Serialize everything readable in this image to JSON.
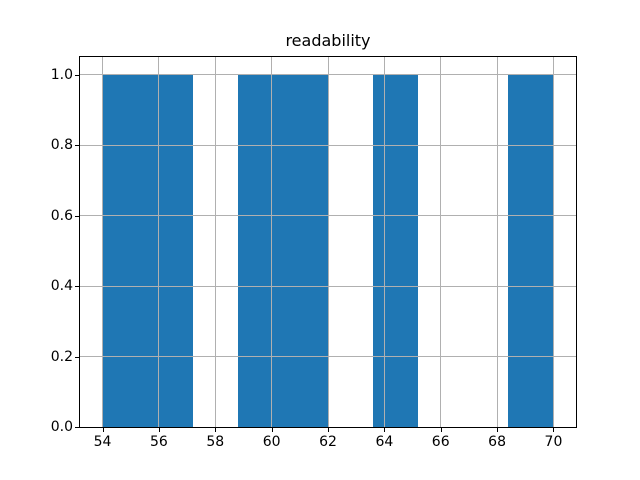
{
  "chart_data": {
    "type": "bar",
    "subtype": "histogram",
    "title": "readability",
    "xlabel": "",
    "ylabel": "",
    "bin_edges": [
      54,
      55.6,
      57.2,
      58.8,
      60.4,
      62,
      63.6,
      65.2,
      66.8,
      68.4,
      70
    ],
    "counts": [
      1,
      1,
      0,
      1,
      1,
      0,
      1,
      0,
      0,
      1
    ],
    "xticks": [
      54,
      56,
      58,
      60,
      62,
      64,
      66,
      68,
      70
    ],
    "yticks": [
      0.0,
      0.2,
      0.4,
      0.6,
      0.8,
      1.0
    ],
    "xlim": [
      53.2,
      70.8
    ],
    "ylim": [
      0,
      1.05
    ],
    "grid": true,
    "legend": "none",
    "colors": {
      "bar": "#1f77b4",
      "grid": "#b0b0b0",
      "spine": "#000000",
      "background": "#ffffff",
      "text": "#000000"
    }
  }
}
